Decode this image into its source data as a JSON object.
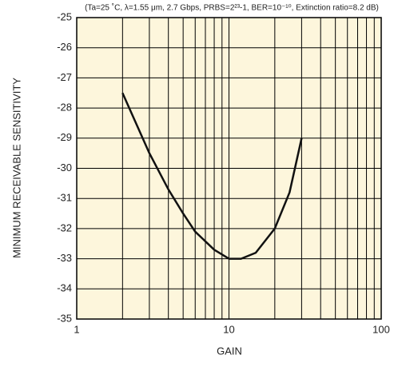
{
  "chart_data": {
    "type": "line",
    "title": "(Ta=25 ˚C, λ=1.55 μm, 2.7 Gbps, PRBS=2²³-1, BER=10⁻¹⁰, Extinction ratio=8.2 dB)",
    "x_label": "GAIN",
    "y_label": "MINIMUM RECEIVABLE SENSITIVITY",
    "x": [
      2,
      2.5,
      3,
      4,
      5,
      6,
      8,
      10,
      12,
      15,
      20,
      25,
      30
    ],
    "series": [
      {
        "color": "#111111",
        "values": [
          -27.5,
          -28.6,
          -29.5,
          -30.7,
          -31.5,
          -32.1,
          -32.7,
          -33.0,
          -33.0,
          -32.8,
          -32.0,
          -30.8,
          -29.0
        ]
      }
    ],
    "xlim": [
      1,
      100
    ],
    "ylim": [
      -35,
      -25
    ],
    "x_log": true,
    "xticks": [
      1,
      10,
      100
    ],
    "x_minor_grid": [
      2,
      3,
      4,
      5,
      6,
      7,
      8,
      9,
      20,
      30,
      40,
      50,
      60,
      70,
      80,
      90
    ],
    "yticks": [
      -35,
      -34,
      -33,
      -32,
      -31,
      -30,
      -29,
      -28,
      -27,
      -26,
      -25
    ],
    "grid": true,
    "background": "#fdf6dc"
  }
}
